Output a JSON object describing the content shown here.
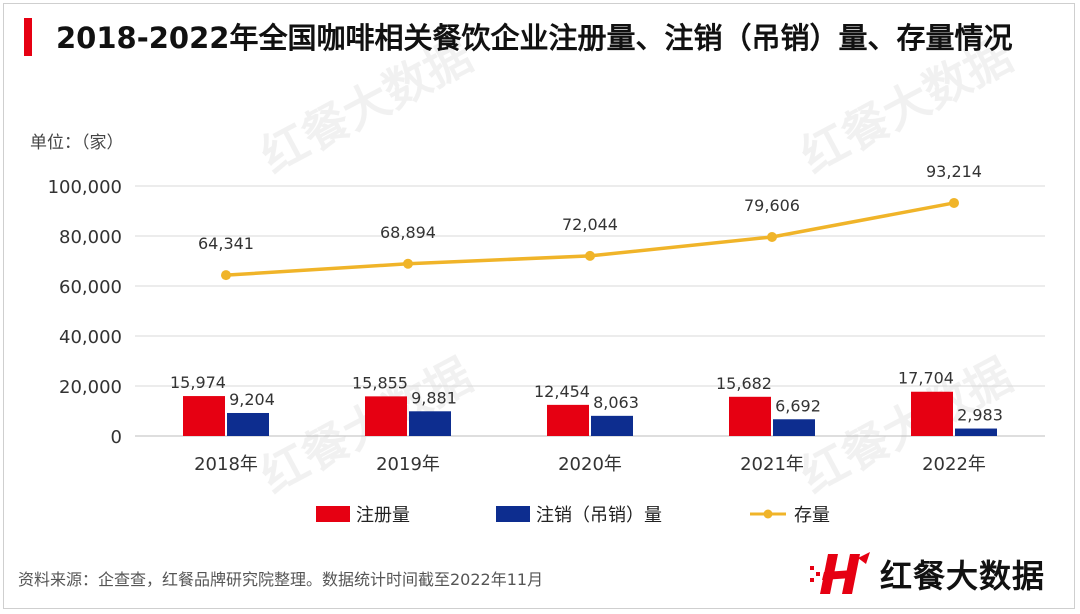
{
  "title": "2018-2022年全国咖啡相关餐饮企业注册量、注销（吊销）量、存量情况",
  "unit_label": "单位：（家）",
  "source": "资料来源：企查查，红餐品牌研究院整理。数据统计时间截至2022年11月",
  "brand": {
    "name": "红餐大数据",
    "watermark": "红餐大数据",
    "logo_icon": "hongcan-h-logo-icon"
  },
  "colors": {
    "registered": "#e60012",
    "cancelled": "#0d2d8f",
    "stock": "#f0b429",
    "accent": "#e60012"
  },
  "chart_data": {
    "type": "bar",
    "categories": [
      "2018年",
      "2019年",
      "2020年",
      "2021年",
      "2022年"
    ],
    "series": [
      {
        "name": "注册量",
        "type": "bar",
        "values": [
          15974,
          15855,
          12454,
          15682,
          17704
        ],
        "labels": [
          "15,974",
          "15,855",
          "12,454",
          "15,682",
          "17,704"
        ]
      },
      {
        "name": "注销（吊销）量",
        "type": "bar",
        "values": [
          9204,
          9881,
          8063,
          6692,
          2983
        ],
        "labels": [
          "9,204",
          "9,881",
          "8,063",
          "6,692",
          "2,983"
        ]
      },
      {
        "name": "存量",
        "type": "line",
        "values": [
          64341,
          68894,
          72044,
          79606,
          93214
        ],
        "labels": [
          "64,341",
          "68,894",
          "72,044",
          "79,606",
          "93,214"
        ]
      }
    ],
    "y_ticks": [
      "0",
      "20,000",
      "40,000",
      "60,000",
      "80,000",
      "100,000"
    ],
    "y_tick_values": [
      0,
      20000,
      40000,
      60000,
      80000,
      100000
    ],
    "ylim": [
      0,
      100000
    ],
    "grid": true,
    "legend_position": "bottom"
  }
}
